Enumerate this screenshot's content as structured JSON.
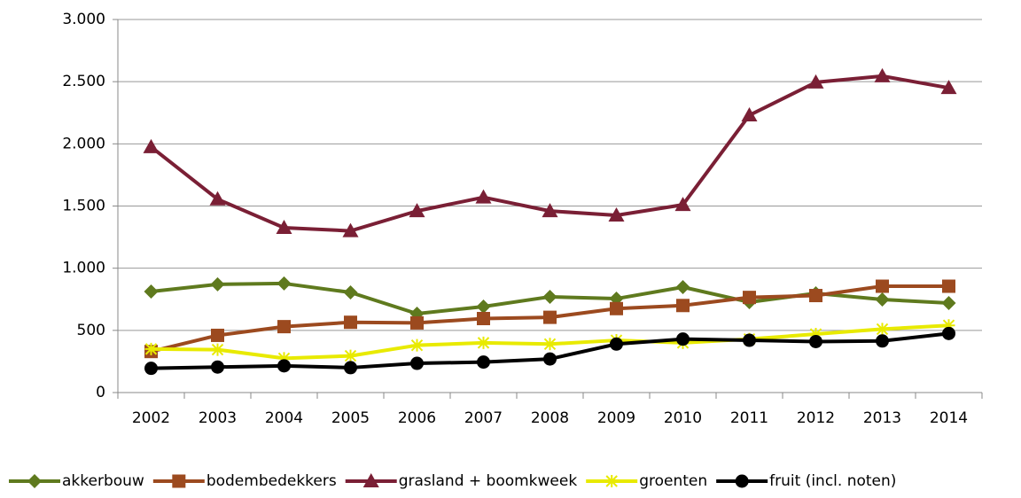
{
  "chart_data": {
    "type": "line",
    "categories": [
      "2002",
      "2003",
      "2004",
      "2005",
      "2006",
      "2007",
      "2008",
      "2009",
      "2010",
      "2011",
      "2012",
      "2013",
      "2014"
    ],
    "series": [
      {
        "name": "akkerbouw",
        "color": "#5f7a1e",
        "marker": "diamond",
        "values": [
          812,
          870,
          877,
          805,
          634,
          691,
          770,
          755,
          848,
          727,
          798,
          748,
          720
        ]
      },
      {
        "name": "bodembedekkers",
        "color": "#9c4a1f",
        "marker": "square",
        "values": [
          330,
          460,
          530,
          565,
          560,
          595,
          605,
          675,
          700,
          765,
          780,
          855,
          855
        ]
      },
      {
        "name": "grasland + boomkweek",
        "color": "#7a1f35",
        "marker": "triangle",
        "values": [
          1975,
          1555,
          1325,
          1300,
          1460,
          1570,
          1460,
          1425,
          1510,
          2230,
          2495,
          2545,
          2450
        ]
      },
      {
        "name": "groenten",
        "color": "#e8ea00",
        "marker": "star",
        "values": [
          350,
          345,
          275,
          295,
          380,
          400,
          390,
          420,
          400,
          430,
          470,
          510,
          540
        ]
      },
      {
        "name": "fruit (incl. noten)",
        "color": "#000000",
        "marker": "circle",
        "values": [
          195,
          205,
          215,
          200,
          235,
          245,
          270,
          390,
          430,
          420,
          410,
          415,
          475
        ]
      }
    ],
    "ylim": [
      0,
      3000
    ],
    "yticks": [
      0,
      500,
      {
        "value": 1000,
        "label": "1.000"
      },
      {
        "value": 1500,
        "label": "1.500"
      },
      {
        "value": 2000,
        "label": "2.000"
      },
      {
        "value": 2500,
        "label": "2.500"
      },
      {
        "value": 3000,
        "label": "3.000"
      }
    ],
    "grid": true,
    "legend": "bottom"
  }
}
